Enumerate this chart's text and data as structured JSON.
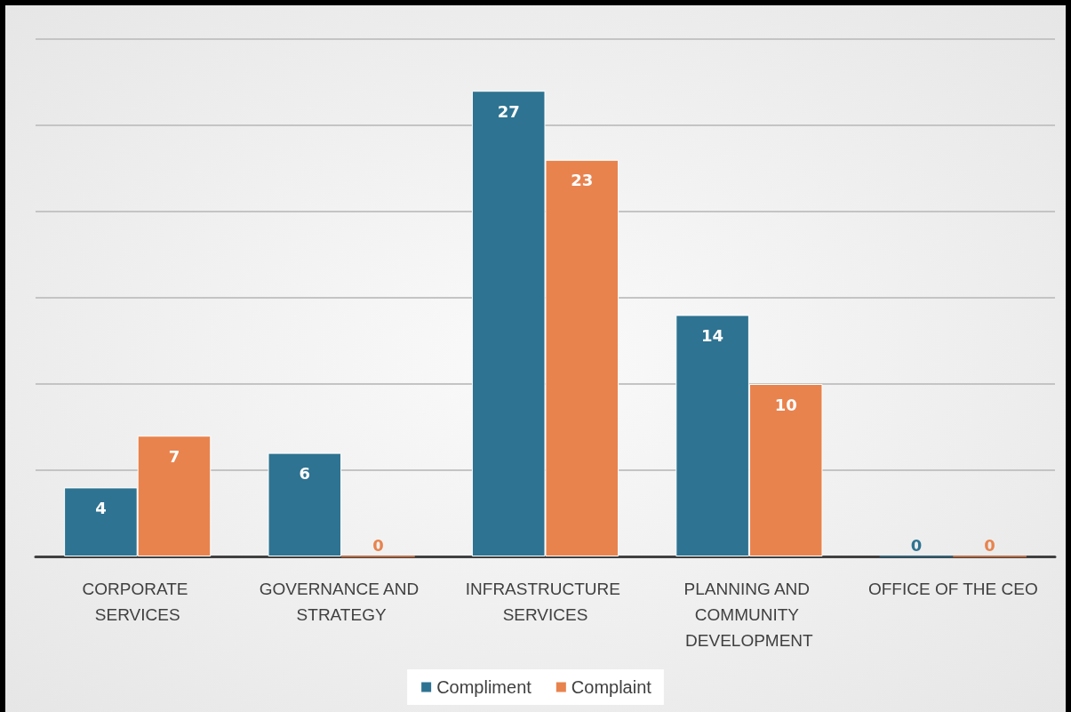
{
  "chart_data": {
    "type": "bar",
    "categories": [
      "CORPORATE SERVICES",
      "GOVERNANCE AND STRATEGY",
      "INFRASTRUCTURE SERVICES",
      "PLANNING AND COMMUNITY DEVELOPMENT",
      "OFFICE OF THE CEO"
    ],
    "series": [
      {
        "name": "Compliment",
        "color": "#2e7391",
        "values": [
          4,
          6,
          27,
          14,
          0
        ]
      },
      {
        "name": "Complaint",
        "color": "#e8834e",
        "values": [
          7,
          0,
          23,
          10,
          0
        ]
      }
    ],
    "ylim": [
      0,
      30
    ],
    "yticks": [
      {
        "value": 0,
        "label": null
      },
      {
        "value": 5,
        "label": null
      },
      {
        "value": 10,
        "label": null
      },
      {
        "value": 15,
        "label": null
      },
      {
        "value": 20,
        "label": null
      },
      {
        "value": 25,
        "label": null
      },
      {
        "value": 30,
        "label": null
      }
    ],
    "tick_labels": "x",
    "grid": "y",
    "legend": "bottom",
    "data_labels": true
  }
}
